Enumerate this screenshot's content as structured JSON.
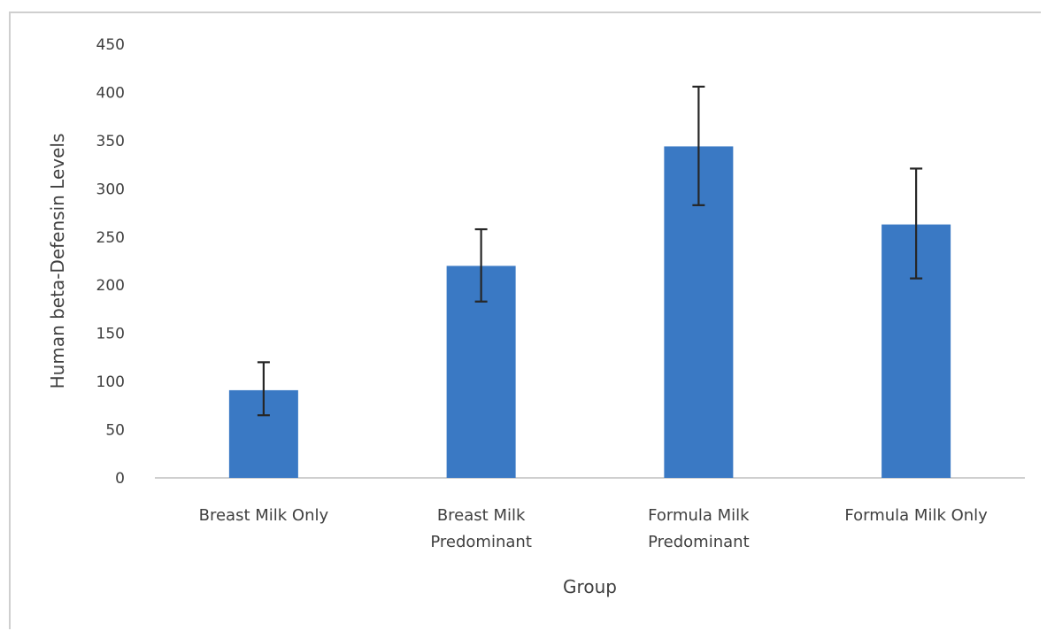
{
  "chart_data": {
    "type": "bar",
    "title": "",
    "xlabel": "Group",
    "ylabel": "Human beta-Defensin Levels",
    "categories": [
      [
        "Breast Milk Only"
      ],
      [
        "Breast Milk",
        "Predominant"
      ],
      [
        "Formula Milk",
        "Predominant"
      ],
      [
        "Formula Milk Only"
      ]
    ],
    "values": [
      91,
      220,
      344,
      263
    ],
    "error_upper": [
      120,
      258,
      406,
      321
    ],
    "error_lower": [
      65,
      183,
      283,
      207
    ],
    "ylim": [
      0,
      450
    ],
    "yticks": [
      0,
      50,
      100,
      150,
      200,
      250,
      300,
      350,
      400,
      450
    ],
    "ytick_labels": [
      "0",
      "50",
      "100",
      "150",
      "200",
      "250",
      "300",
      "350",
      "400",
      "450"
    ],
    "grid": false,
    "legend": "none",
    "colors": {
      "bar": "#3a79c4",
      "error_bar": "#262626",
      "axis": "#bfbfbf",
      "text": "#404040"
    }
  }
}
